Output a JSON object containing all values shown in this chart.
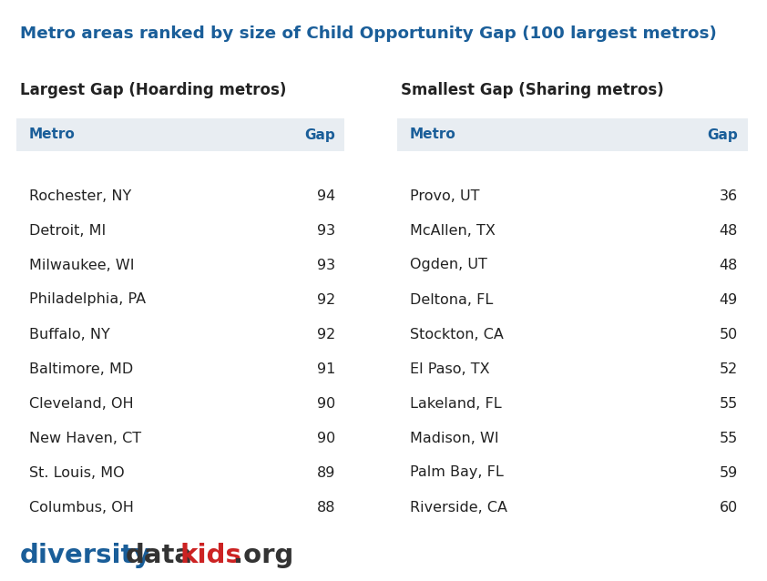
{
  "title": "Metro areas ranked by size of Child Opportunity Gap (100 largest metros)",
  "title_color": "#1a5e99",
  "left_heading": "Largest Gap (Hoarding metros)",
  "right_heading": "Smallest Gap (Sharing metros)",
  "col_header_bg": "#e8edf2",
  "col_header_color": "#1a5e99",
  "left_metros": [
    "Rochester, NY",
    "Detroit, MI",
    "Milwaukee, WI",
    "Philadelphia, PA",
    "Buffalo, NY",
    "Baltimore, MD",
    "Cleveland, OH",
    "New Haven, CT",
    "St. Louis, MO",
    "Columbus, OH"
  ],
  "left_gaps": [
    "94",
    "93",
    "93",
    "92",
    "92",
    "91",
    "90",
    "90",
    "89",
    "88"
  ],
  "right_metros": [
    "Provo, UT",
    "McAllen, TX",
    "Ogden, UT",
    "Deltona, FL",
    "Stockton, CA",
    "El Paso, TX",
    "Lakeland, FL",
    "Madison, WI",
    "Palm Bay, FL",
    "Riverside, CA"
  ],
  "right_gaps": [
    "36",
    "48",
    "48",
    "49",
    "50",
    "52",
    "55",
    "55",
    "59",
    "60"
  ],
  "bg_color": "#ffffff",
  "text_color": "#222222",
  "footer_blue": "#1a5e99",
  "footer_red": "#cc2222",
  "footer_dark": "#333333"
}
